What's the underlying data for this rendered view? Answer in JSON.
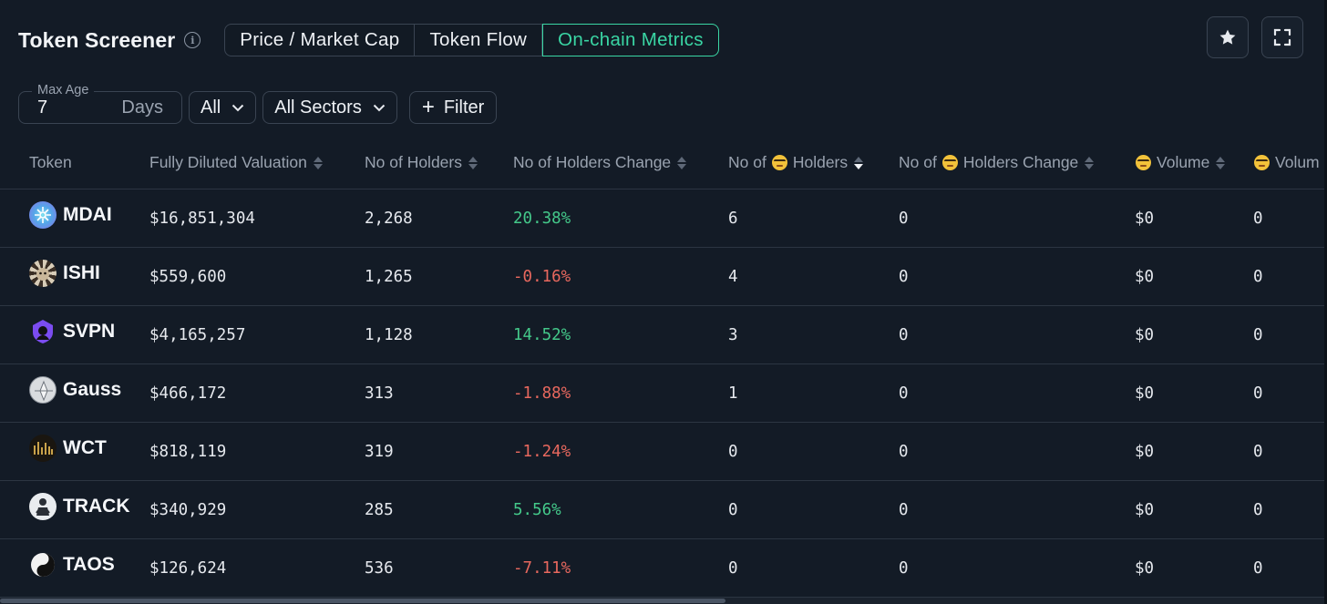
{
  "header": {
    "title": "Token Screener",
    "tabs": [
      {
        "label": "Price / Market Cap",
        "active": false
      },
      {
        "label": "Token Flow",
        "active": false
      },
      {
        "label": "On-chain Metrics",
        "active": true
      }
    ],
    "accent_color": "#3ad6a4",
    "icons": [
      "info-icon",
      "star-icon",
      "expand-icon"
    ]
  },
  "filters": {
    "max_age_label": "Max Age",
    "max_age_value": "7",
    "max_age_unit": "Days",
    "chain_select": "All",
    "sector_select": "All Sectors",
    "filter_button": "Filter"
  },
  "table": {
    "columns": [
      "Token",
      "Fully Diluted Valuation",
      "No of Holders",
      "No of Holders Change",
      "No of",
      "Holders",
      "No of",
      "Holders Change",
      "Volume",
      "Volum"
    ],
    "sorted_column": "No of 🤓 Holders",
    "sort_direction": "desc",
    "rows": [
      {
        "token": "MDAI",
        "fdv": "$16,851,304",
        "holders": "2,268",
        "holders_change": "20.38%",
        "trend": "up",
        "smart_holders": "6",
        "smart_holders_change": "0",
        "smart_volume": "$0",
        "smart_volume_2": "0"
      },
      {
        "token": "ISHI",
        "fdv": "$559,600",
        "holders": "1,265",
        "holders_change": "-0.16%",
        "trend": "down",
        "smart_holders": "4",
        "smart_holders_change": "0",
        "smart_volume": "$0",
        "smart_volume_2": "0"
      },
      {
        "token": "SVPN",
        "fdv": "$4,165,257",
        "holders": "1,128",
        "holders_change": "14.52%",
        "trend": "up",
        "smart_holders": "3",
        "smart_holders_change": "0",
        "smart_volume": "$0",
        "smart_volume_2": "0"
      },
      {
        "token": "Gauss",
        "fdv": "$466,172",
        "holders": "313",
        "holders_change": "-1.88%",
        "trend": "down",
        "smart_holders": "1",
        "smart_holders_change": "0",
        "smart_volume": "$0",
        "smart_volume_2": "0"
      },
      {
        "token": "WCT",
        "fdv": "$818,119",
        "holders": "319",
        "holders_change": "-1.24%",
        "trend": "down",
        "smart_holders": "0",
        "smart_holders_change": "0",
        "smart_volume": "$0",
        "smart_volume_2": "0"
      },
      {
        "token": "TRACK",
        "fdv": "$340,929",
        "holders": "285",
        "holders_change": "5.56%",
        "trend": "up",
        "smart_holders": "0",
        "smart_holders_change": "0",
        "smart_volume": "$0",
        "smart_volume_2": "0"
      },
      {
        "token": "TAOS",
        "fdv": "$126,624",
        "holders": "536",
        "holders_change": "-7.11%",
        "trend": "down",
        "smart_holders": "0",
        "smart_holders_change": "0",
        "smart_volume": "$0",
        "smart_volume_2": "0"
      }
    ]
  }
}
